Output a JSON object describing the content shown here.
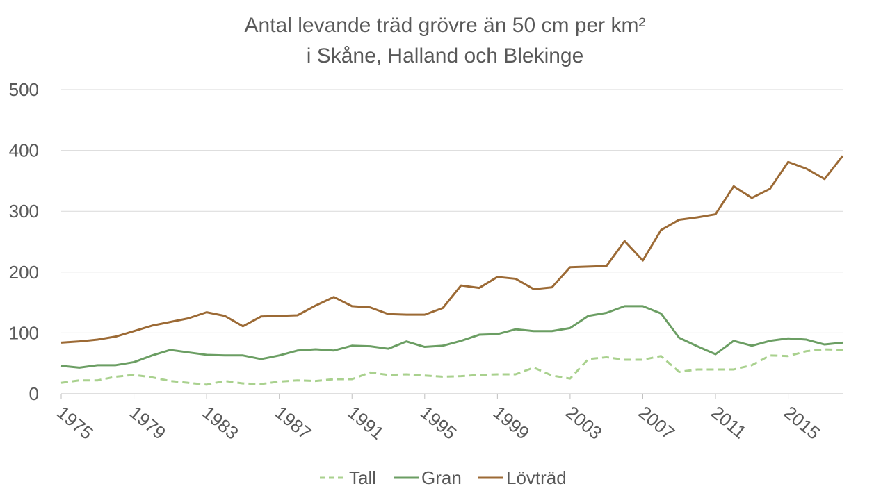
{
  "chart_data": {
    "type": "line",
    "title": [
      "Antal levande träd grövre än 50 cm per km²",
      "i Skåne, Halland och Blekinge"
    ],
    "xlabel": "",
    "ylabel": "",
    "x": [
      1975,
      1976,
      1977,
      1978,
      1979,
      1980,
      1981,
      1982,
      1983,
      1984,
      1985,
      1986,
      1987,
      1988,
      1989,
      1990,
      1991,
      1992,
      1993,
      1994,
      1995,
      1996,
      1997,
      1998,
      1999,
      2000,
      2001,
      2002,
      2003,
      2004,
      2005,
      2006,
      2007,
      2008,
      2009,
      2010,
      2011,
      2012,
      2013,
      2014,
      2015,
      2016,
      2017,
      2018
    ],
    "x_tick_labels": [
      "1975",
      "1979",
      "1983",
      "1987",
      "1991",
      "1995",
      "1999",
      "2003",
      "2007",
      "2011",
      "2015"
    ],
    "x_ticks": [
      1975,
      1979,
      1983,
      1987,
      1991,
      1995,
      1999,
      2003,
      2007,
      2011,
      2015
    ],
    "ylim": [
      0,
      500
    ],
    "y_ticks": [
      0,
      100,
      200,
      300,
      400,
      500
    ],
    "y_tick_labels": [
      "0",
      "100",
      "200",
      "300",
      "400",
      "500"
    ],
    "grid": "horizontal",
    "legend_position": "bottom",
    "series": [
      {
        "name": "Tall",
        "color": "#a9d18e",
        "dash": "dashed",
        "values": [
          18,
          22,
          22,
          28,
          31,
          27,
          21,
          18,
          15,
          21,
          17,
          16,
          20,
          22,
          21,
          24,
          24,
          35,
          31,
          32,
          30,
          28,
          29,
          31,
          32,
          32,
          43,
          30,
          25,
          57,
          60,
          56,
          56,
          62,
          36,
          40,
          40,
          40,
          47,
          63,
          62,
          70,
          73,
          72
        ]
      },
      {
        "name": "Gran",
        "color": "#6b9e63",
        "dash": "solid",
        "values": [
          46,
          43,
          47,
          47,
          52,
          63,
          72,
          68,
          64,
          63,
          63,
          57,
          63,
          71,
          73,
          71,
          79,
          78,
          74,
          86,
          77,
          79,
          87,
          97,
          98,
          106,
          103,
          103,
          108,
          128,
          133,
          144,
          144,
          132,
          92,
          78,
          65,
          87,
          79,
          87,
          91,
          89,
          81,
          84
        ]
      },
      {
        "name": "Lövträd",
        "color": "#9c6a35",
        "dash": "solid",
        "values": [
          84,
          86,
          89,
          94,
          103,
          112,
          118,
          124,
          134,
          128,
          111,
          127,
          128,
          129,
          145,
          159,
          144,
          142,
          131,
          130,
          130,
          141,
          178,
          174,
          192,
          189,
          172,
          175,
          208,
          209,
          210,
          251,
          219,
          269,
          286,
          290,
          295,
          341,
          322,
          337,
          381,
          370,
          353,
          391
        ]
      }
    ]
  }
}
